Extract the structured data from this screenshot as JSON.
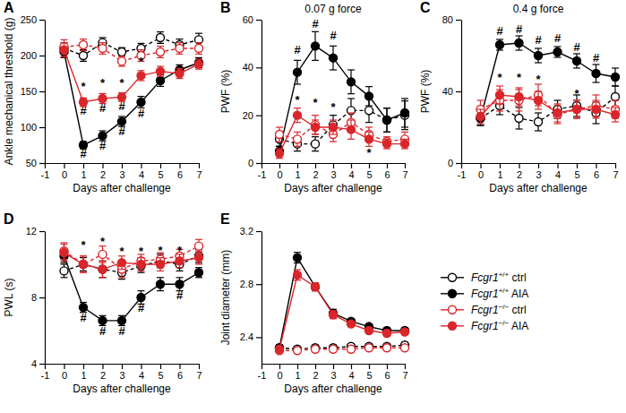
{
  "chart_data": [
    {
      "type": "line",
      "panel": "A",
      "x_label": "Days after challenge",
      "y_label": "Ankle mechanical threshold (g)",
      "x": [
        0,
        1,
        2,
        3,
        4,
        5,
        6,
        7
      ],
      "xlim": [
        -1,
        7
      ],
      "xticks": [
        -1,
        0,
        1,
        2,
        3,
        4,
        5,
        6,
        7
      ],
      "ylim": [
        50,
        250
      ],
      "yticks": [
        50,
        100,
        150,
        200,
        250
      ],
      "series": [
        {
          "color": "#000000",
          "marker": "circle-open",
          "line_style": "dashed",
          "values": [
            210,
            200,
            218,
            205,
            210,
            225,
            215,
            222
          ],
          "errors": [
            8,
            8,
            7,
            6,
            7,
            8,
            8,
            9
          ]
        },
        {
          "color": "#000000",
          "marker": "circle",
          "line_style": "solid",
          "values": [
            205,
            75,
            88,
            108,
            135,
            165,
            180,
            190
          ],
          "errors": [
            8,
            5,
            7,
            7,
            8,
            8,
            7,
            7
          ]
        },
        {
          "color": "#d9262b",
          "marker": "circle-open",
          "line_style": "dashed",
          "values": [
            212,
            215,
            210,
            192,
            200,
            205,
            210,
            210
          ],
          "errors": [
            10,
            8,
            8,
            7,
            8,
            8,
            8,
            8
          ]
        },
        {
          "color": "#d9262b",
          "marker": "circle",
          "line_style": "solid",
          "values": [
            208,
            135,
            140,
            142,
            172,
            178,
            175,
            188
          ],
          "errors": [
            10,
            6,
            7,
            6,
            7,
            7,
            7,
            7
          ]
        }
      ],
      "annotations": [
        {
          "text": "*",
          "x": 1,
          "y": 155
        },
        {
          "text": "*",
          "x": 2,
          "y": 160
        },
        {
          "text": "*",
          "x": 3,
          "y": 160
        },
        {
          "text": "*",
          "x": 4,
          "y": 190
        },
        {
          "text": "#",
          "x": 1,
          "y": 62
        },
        {
          "text": "#",
          "x": 2,
          "y": 73
        },
        {
          "text": "#",
          "x": 3,
          "y": 93
        },
        {
          "text": "#",
          "x": 4,
          "y": 118
        },
        {
          "text": "#",
          "x": 1,
          "y": 122
        },
        {
          "text": "#",
          "x": 2,
          "y": 125
        },
        {
          "text": "#",
          "x": 3,
          "y": 128
        }
      ]
    },
    {
      "type": "line",
      "panel": "B",
      "title": "0.07 g force",
      "x_label": "Days after challenge",
      "y_label": "PWF (%)",
      "x": [
        0,
        1,
        2,
        3,
        4,
        5,
        6,
        7
      ],
      "xlim": [
        -1,
        7
      ],
      "xticks": [
        -1,
        0,
        1,
        2,
        3,
        4,
        5,
        6,
        7
      ],
      "ylim": [
        0,
        60
      ],
      "yticks": [
        0,
        20,
        40,
        60
      ],
      "series": [
        {
          "color": "#000000",
          "marker": "circle-open",
          "line_style": "dashed",
          "values": [
            10,
            8,
            8,
            16,
            22,
            22,
            18,
            20
          ],
          "errors": [
            3,
            3,
            3,
            4,
            5,
            5,
            5,
            6
          ]
        },
        {
          "color": "#000000",
          "marker": "circle",
          "line_style": "solid",
          "values": [
            5,
            38,
            49,
            44,
            34,
            28,
            18,
            21
          ],
          "errors": [
            2,
            5,
            6,
            5,
            5,
            4,
            5,
            6
          ]
        },
        {
          "color": "#d9262b",
          "marker": "circle-open",
          "line_style": "dashed",
          "values": [
            12,
            10,
            16,
            12,
            17,
            12,
            9,
            10
          ],
          "errors": [
            3,
            3,
            4,
            3,
            4,
            3,
            2,
            3
          ]
        },
        {
          "color": "#d9262b",
          "marker": "circle",
          "line_style": "solid",
          "values": [
            4,
            20,
            15,
            15,
            14,
            10,
            8,
            8
          ],
          "errors": [
            2,
            3,
            3,
            3,
            4,
            3,
            2,
            2
          ]
        }
      ],
      "annotations": [
        {
          "text": "#",
          "x": 1,
          "y": 47
        },
        {
          "text": "#",
          "x": 2,
          "y": 58
        },
        {
          "text": "#",
          "x": 3,
          "y": 53
        },
        {
          "text": "*",
          "x": 1,
          "y": 26
        },
        {
          "text": "*",
          "x": 2,
          "y": 25
        },
        {
          "text": "*",
          "x": 3,
          "y": 23
        },
        {
          "text": "*",
          "x": 5,
          "y": 4
        }
      ]
    },
    {
      "type": "line",
      "panel": "C",
      "title": "0.4 g force",
      "x_label": "Days after challenge",
      "y_label": "PWF (%)",
      "x": [
        0,
        1,
        2,
        3,
        4,
        5,
        6,
        7
      ],
      "xlim": [
        -1,
        7
      ],
      "xticks": [
        -1,
        0,
        1,
        2,
        3,
        4,
        5,
        6,
        7
      ],
      "ylim": [
        0,
        80
      ],
      "yticks": [
        0,
        40,
        80
      ],
      "series": [
        {
          "color": "#000000",
          "marker": "circle-open",
          "line_style": "dashed",
          "values": [
            25,
            32,
            25,
            23,
            30,
            32,
            28,
            37
          ],
          "errors": [
            4,
            5,
            6,
            5,
            5,
            6,
            6,
            6
          ]
        },
        {
          "color": "#000000",
          "marker": "circle",
          "line_style": "solid",
          "values": [
            25,
            66,
            67,
            60,
            62,
            57,
            50,
            48
          ],
          "errors": [
            4,
            3,
            4,
            4,
            3,
            4,
            5,
            5
          ]
        },
        {
          "color": "#d9262b",
          "marker": "circle-open",
          "line_style": "dashed",
          "values": [
            30,
            35,
            35,
            38,
            27,
            30,
            32,
            30
          ],
          "errors": [
            5,
            6,
            6,
            6,
            5,
            5,
            6,
            5
          ]
        },
        {
          "color": "#d9262b",
          "marker": "circle",
          "line_style": "solid",
          "values": [
            26,
            38,
            37,
            35,
            28,
            30,
            30,
            27
          ],
          "errors": [
            4,
            5,
            5,
            5,
            5,
            5,
            5,
            4
          ]
        }
      ],
      "annotations": [
        {
          "text": "#",
          "x": 1,
          "y": 73
        },
        {
          "text": "#",
          "x": 2,
          "y": 74
        },
        {
          "text": "#",
          "x": 3,
          "y": 68
        },
        {
          "text": "#",
          "x": 4,
          "y": 69
        },
        {
          "text": "#",
          "x": 5,
          "y": 64
        },
        {
          "text": "#",
          "x": 6,
          "y": 58
        },
        {
          "text": "*",
          "x": 1,
          "y": 47
        },
        {
          "text": "*",
          "x": 2,
          "y": 47
        },
        {
          "text": "*",
          "x": 3,
          "y": 46
        },
        {
          "text": "*",
          "x": 5,
          "y": 38
        }
      ]
    },
    {
      "type": "line",
      "panel": "D",
      "x_label": "Days after challenge",
      "y_label": "PWL (s)",
      "x": [
        0,
        1,
        2,
        3,
        4,
        5,
        6,
        7
      ],
      "xlim": [
        -1,
        7
      ],
      "xticks": [
        -1,
        0,
        1,
        2,
        3,
        4,
        5,
        6,
        7
      ],
      "ylim": [
        4,
        12
      ],
      "yticks": [
        4,
        8,
        12
      ],
      "series": [
        {
          "color": "#000000",
          "marker": "circle-open",
          "line_style": "dashed",
          "values": [
            9.6,
            10.0,
            9.7,
            9.5,
            9.9,
            10.2,
            10.0,
            10.5
          ],
          "errors": [
            0.4,
            0.4,
            0.5,
            0.4,
            0.4,
            0.4,
            0.4,
            0.4
          ]
        },
        {
          "color": "#000000",
          "marker": "circle",
          "line_style": "solid",
          "values": [
            10.5,
            7.4,
            6.6,
            6.6,
            8.0,
            8.8,
            8.8,
            9.5
          ],
          "errors": [
            0.4,
            0.3,
            0.3,
            0.3,
            0.4,
            0.4,
            0.4,
            0.3
          ]
        },
        {
          "color": "#d9262b",
          "marker": "circle-open",
          "line_style": "dashed",
          "values": [
            10.8,
            10.0,
            10.6,
            9.7,
            10.2,
            10.3,
            10.5,
            11.1
          ],
          "errors": [
            0.5,
            0.5,
            0.5,
            0.5,
            0.4,
            0.4,
            0.4,
            0.4
          ]
        },
        {
          "color": "#d9262b",
          "marker": "circle",
          "line_style": "solid",
          "values": [
            10.7,
            10.0,
            9.7,
            10.1,
            10.0,
            10.0,
            10.2,
            10.4
          ],
          "errors": [
            0.5,
            0.5,
            0.5,
            0.4,
            0.4,
            0.4,
            0.4,
            0.4
          ]
        }
      ],
      "annotations": [
        {
          "text": "*",
          "x": 1,
          "y": 11.1
        },
        {
          "text": "*",
          "x": 2,
          "y": 11.3
        },
        {
          "text": "*",
          "x": 3,
          "y": 10.7
        },
        {
          "text": "*",
          "x": 4,
          "y": 10.7
        },
        {
          "text": "*",
          "x": 5,
          "y": 10.8
        },
        {
          "text": "*",
          "x": 6,
          "y": 10.8
        },
        {
          "text": "#",
          "x": 1,
          "y": 6.7
        },
        {
          "text": "#",
          "x": 2,
          "y": 5.9
        },
        {
          "text": "#",
          "x": 3,
          "y": 5.9
        },
        {
          "text": "#",
          "x": 4,
          "y": 7.3
        },
        {
          "text": "#",
          "x": 6,
          "y": 8.1
        }
      ]
    },
    {
      "type": "line",
      "panel": "E",
      "x_label": "Days after challenge",
      "y_label": "Joint diameter (mm)",
      "legend": "right",
      "x": [
        0,
        1,
        2,
        3,
        4,
        5,
        6,
        7
      ],
      "xlim": [
        -1,
        7
      ],
      "xticks": [
        -1,
        0,
        1,
        2,
        3,
        4,
        5,
        6,
        7
      ],
      "ylim": [
        2.2,
        3.2
      ],
      "yticks": [
        2.4,
        2.8,
        3.2
      ],
      "series": [
        {
          "name": "Fcgr1+/+ ctrl",
          "color": "#000000",
          "marker": "circle-open",
          "line_style": "dashed",
          "values": [
            2.32,
            2.31,
            2.32,
            2.32,
            2.33,
            2.33,
            2.33,
            2.34
          ],
          "errors": [
            0.02,
            0.02,
            0.02,
            0.02,
            0.02,
            0.02,
            0.02,
            0.02
          ]
        },
        {
          "name": "Fcgr1+/+ AIA",
          "color": "#000000",
          "marker": "circle",
          "line_style": "solid",
          "values": [
            2.32,
            3.0,
            2.78,
            2.58,
            2.52,
            2.48,
            2.45,
            2.45
          ],
          "errors": [
            0.02,
            0.04,
            0.03,
            0.03,
            0.02,
            0.02,
            0.02,
            0.02
          ]
        },
        {
          "name": "Fcgr1−/− ctrl",
          "color": "#d9262b",
          "marker": "circle-open",
          "line_style": "dashed",
          "values": [
            2.3,
            2.3,
            2.31,
            2.31,
            2.31,
            2.32,
            2.32,
            2.32
          ],
          "errors": [
            0.02,
            0.02,
            0.02,
            0.02,
            0.02,
            0.02,
            0.02,
            0.02
          ]
        },
        {
          "name": "Fcgr1−/− AIA",
          "color": "#d9262b",
          "marker": "circle",
          "line_style": "solid",
          "values": [
            2.31,
            2.87,
            2.78,
            2.57,
            2.5,
            2.45,
            2.43,
            2.44
          ],
          "errors": [
            0.02,
            0.04,
            0.03,
            0.03,
            0.02,
            0.02,
            0.02,
            0.02
          ]
        }
      ]
    }
  ]
}
